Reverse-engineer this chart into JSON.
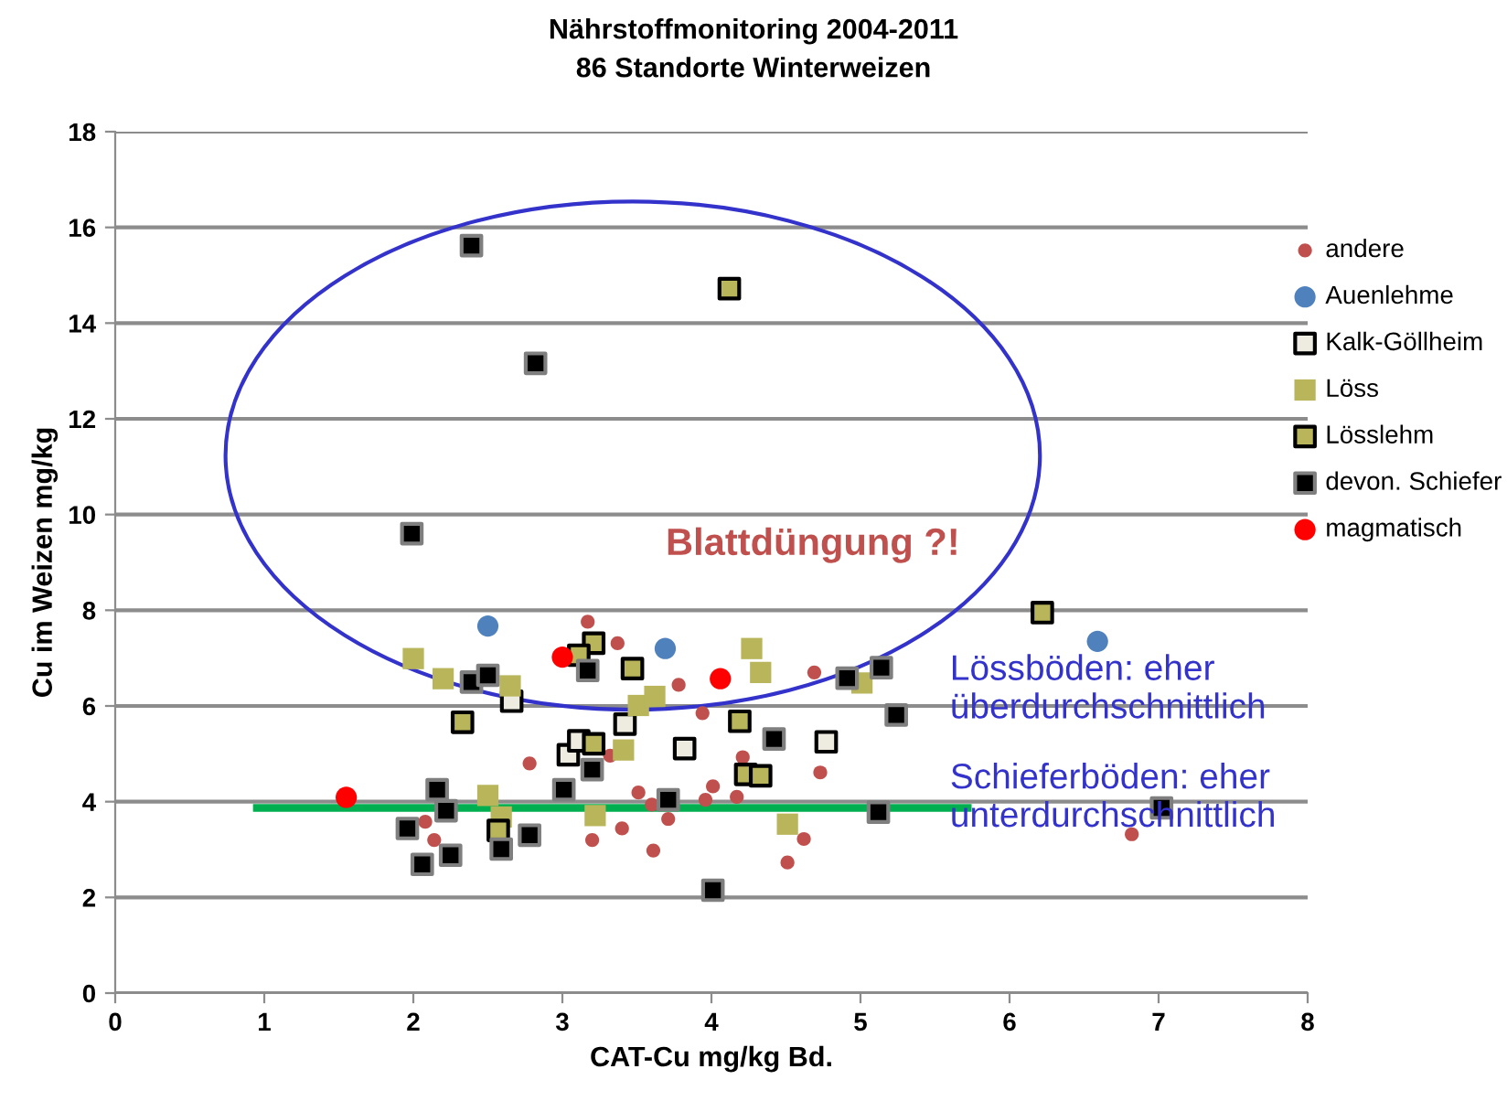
{
  "chart_data": {
    "type": "scatter",
    "title": "Nährstoffmonitoring 2004-2011",
    "subtitle": "86 Standorte Winterweizen",
    "xlabel": "CAT-Cu mg/kg Bd.",
    "ylabel": "Cu im Weizen mg/kg",
    "xlim": [
      0,
      8
    ],
    "xticks": [
      0,
      1,
      2,
      3,
      4,
      5,
      6,
      7,
      8
    ],
    "ylim": [
      0,
      18
    ],
    "yticks": [
      0,
      2,
      4,
      6,
      8,
      10,
      12,
      14,
      16,
      18
    ],
    "grid": "y",
    "legend": "right",
    "series": [
      {
        "name": "andere",
        "color": "#c0504d",
        "marker": "circle",
        "x": [
          3.17,
          3.37,
          2.78,
          3.32,
          2.08,
          2.14,
          3.78,
          4.69,
          3.94,
          4.21,
          4.73,
          3.51,
          3.6,
          4.01,
          3.96,
          4.17,
          3.71,
          3.4,
          3.2,
          3.61,
          4.62,
          4.51,
          6.82
        ],
        "values": [
          7.76,
          7.31,
          4.8,
          4.96,
          3.58,
          3.2,
          6.44,
          6.7,
          5.85,
          4.93,
          4.61,
          4.19,
          3.94,
          4.32,
          4.04,
          4.1,
          3.64,
          3.44,
          3.2,
          2.98,
          3.22,
          2.73,
          3.32
        ]
      },
      {
        "name": "Auenlehme",
        "color": "#4f81bd",
        "marker": "circle",
        "x": [
          2.5,
          3.69,
          6.59
        ],
        "values": [
          7.67,
          7.2,
          7.35
        ]
      },
      {
        "name": "Kalk-Göllheim",
        "color": "#eeece1",
        "marker": "square",
        "x": [
          2.66,
          3.42,
          3.04,
          3.11,
          3.82,
          4.77
        ],
        "values": [
          6.1,
          5.62,
          4.98,
          5.27,
          5.11,
          5.25
        ]
      },
      {
        "name": "Löss",
        "color": "#b8b55a",
        "marker": "square",
        "x": [
          2.0,
          2.2,
          2.65,
          2.5,
          3.22,
          3.41,
          4.27,
          4.33,
          3.51,
          3.62,
          4.51,
          5.01,
          2.59
        ],
        "values": [
          6.99,
          6.57,
          6.42,
          4.13,
          3.71,
          5.08,
          7.2,
          6.7,
          6.01,
          6.2,
          3.53,
          6.48,
          3.68
        ]
      },
      {
        "name": "Lösslehm",
        "color": "#b8b55a",
        "marker": "square",
        "x": [
          4.12,
          3.21,
          3.11,
          3.47,
          2.33,
          3.21,
          2.57,
          4.19,
          4.23,
          4.33,
          6.22
        ],
        "values": [
          14.72,
          7.31,
          7.06,
          6.78,
          5.66,
          5.21,
          3.4,
          5.68,
          4.57,
          4.54,
          7.95
        ]
      },
      {
        "name": "devon. Schiefer",
        "color": "#000000",
        "marker": "square",
        "x": [
          2.39,
          2.82,
          1.99,
          2.39,
          2.5,
          3.17,
          2.16,
          3.01,
          2.22,
          1.96,
          2.78,
          2.59,
          2.25,
          2.06,
          3.2,
          3.71,
          4.42,
          4.91,
          5.14,
          5.24,
          5.12,
          4.01,
          7.02
        ],
        "values": [
          15.62,
          13.16,
          9.6,
          6.5,
          6.64,
          6.74,
          4.25,
          4.25,
          3.81,
          3.44,
          3.3,
          3.01,
          2.88,
          2.69,
          4.67,
          4.04,
          5.31,
          6.58,
          6.8,
          5.81,
          3.78,
          2.15,
          3.87
        ]
      },
      {
        "name": "magmatisch",
        "color": "#ff0000",
        "marker": "circle",
        "x": [
          1.55,
          3.0,
          4.06
        ],
        "values": [
          4.09,
          7.02,
          6.57
        ]
      },
      {
        "type": "line",
        "color": "#00b050",
        "x": [
          0.95,
          5.72
        ],
        "values": [
          3.87,
          3.87
        ]
      }
    ],
    "annotations": [
      "Blattdüngung ?!",
      "Lössböden: eher überdurchschnittlich",
      "Schieferböden: eher unterdurchschnittlich"
    ]
  }
}
